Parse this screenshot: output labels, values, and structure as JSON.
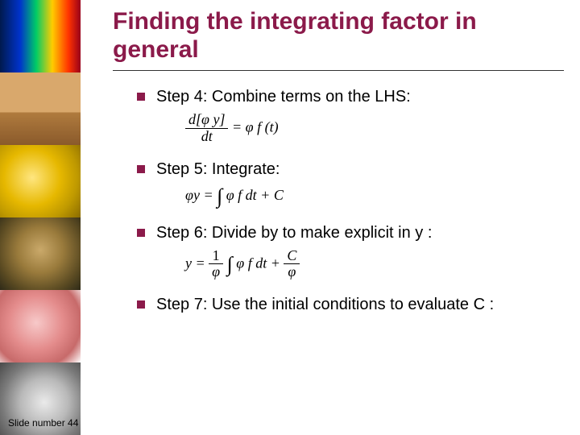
{
  "title": "Finding the integrating factor in general",
  "steps": [
    {
      "text": "Step 4: Combine terms on the LHS:",
      "hasEq": true
    },
    {
      "text": "Step 5: Integrate:",
      "hasEq": true
    },
    {
      "text": "Step 6: Divide by  to make explicit in y :",
      "hasEq": true
    },
    {
      "text": "Step 7: Use the initial conditions to evaluate C :",
      "hasEq": false
    }
  ],
  "footer": "Slide number 44",
  "colors": {
    "accent": "#8b1a4a",
    "text": "#000000",
    "bg": "#ffffff"
  },
  "sidebar_thumbs": [
    {
      "name": "heatmap-image",
      "bg": "linear-gradient(90deg,#001a4d 0%,#0033cc 25%,#00cc66 45%,#ffcc00 65%,#ff3300 85%,#99001a 100%)"
    },
    {
      "name": "oilpump-image",
      "bg": "linear-gradient(#d9a86c 0%,#d9a86c 55%,#b07b3e 55%,#8a5a2b 100%)"
    },
    {
      "name": "goldbars-image",
      "bg": "radial-gradient(circle at 40% 45%,#ffe680 0%,#e6b800 45%,#bf9900 72%,#8a6b00 100%)"
    },
    {
      "name": "leopard-image",
      "bg": "radial-gradient(circle at 50% 45%,#caa96a 0%,#9a7b3c 40%,#5a4a22 75%,#2e2a18 100%)"
    },
    {
      "name": "liver-image",
      "bg": "radial-gradient(circle at 45% 45%,#f7c9c9 0%,#e48c8c 45%,#c76a6a 75%,#ffffff 100%)"
    },
    {
      "name": "satellite-image",
      "bg": "radial-gradient(circle at 55% 55%,#eaeaea 0%,#b9b9b9 40%,#7a7a7a 70%,#4a4a4a 100%)"
    }
  ]
}
